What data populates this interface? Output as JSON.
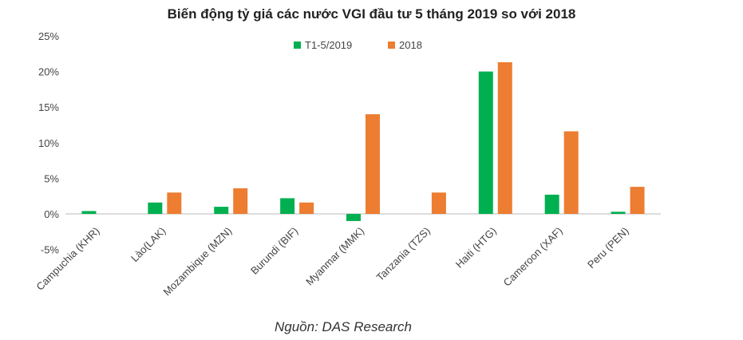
{
  "chart_data": {
    "type": "bar",
    "title": "Biến động tỷ giá các nước VGI đầu tư 5 tháng 2019 so với 2018",
    "xlabel": "",
    "ylabel": "",
    "ylim": [
      -5,
      25
    ],
    "yticks": [
      "-5%",
      "0%",
      "5%",
      "10%",
      "15%",
      "20%",
      "25%"
    ],
    "ytick_values": [
      -5,
      0,
      5,
      10,
      15,
      20,
      25
    ],
    "categories": [
      "Campuchia (KHR)",
      "Lào(LAK)",
      "Mozambique (MZN)",
      "Burundi (BIF)",
      "Myanmar (MMK)",
      "Tanzania (TZS)",
      "Haiti (HTG)",
      "Cameroon (XAF)",
      "Peru (PEN)"
    ],
    "series": [
      {
        "name": "T1-5/2019",
        "color": "#00b050",
        "values": [
          0.4,
          1.6,
          1.0,
          2.2,
          -1.0,
          0,
          20.0,
          2.7,
          0.3
        ]
      },
      {
        "name": "2018",
        "color": "#ed7d31",
        "values": [
          0,
          3.0,
          3.6,
          1.6,
          14.0,
          3.0,
          21.3,
          11.6,
          3.8
        ]
      }
    ],
    "legend_position": "top-center",
    "grid": false,
    "source": "Nguồn: DAS Research"
  }
}
